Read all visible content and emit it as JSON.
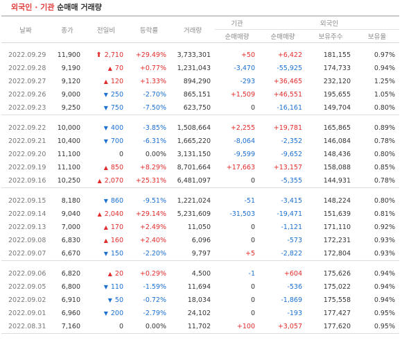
{
  "title": {
    "part1": "외국인 · 기관",
    "part2": "순매매 거래량"
  },
  "headers": {
    "date": "날짜",
    "close": "종가",
    "change": "전일비",
    "rate": "등락률",
    "volume": "거래량",
    "inst_group": "기관",
    "foreign_group": "외국인",
    "inst_net": "순매매량",
    "foreign_net": "순매매량",
    "foreign_holdings": "보유주수",
    "foreign_ratio": "보유율"
  },
  "groups": [
    [
      {
        "date": "2022.09.29",
        "close": "11,900",
        "dir": "upper",
        "change": "2,710",
        "rate": "+29.49%",
        "rate_dir": "up",
        "volume": "3,733,301",
        "inst": "+50",
        "inst_dir": "up",
        "foreign": "+6,422",
        "foreign_dir": "up",
        "holdings": "181,155",
        "ratio": "0.97%"
      },
      {
        "date": "2022.09.28",
        "close": "9,190",
        "dir": "up",
        "change": "70",
        "rate": "+0.77%",
        "rate_dir": "up",
        "volume": "1,231,043",
        "inst": "-3,470",
        "inst_dir": "dn",
        "foreign": "-55,925",
        "foreign_dir": "dn",
        "holdings": "174,733",
        "ratio": "0.94%"
      },
      {
        "date": "2022.09.27",
        "close": "9,120",
        "dir": "up",
        "change": "120",
        "rate": "+1.33%",
        "rate_dir": "up",
        "volume": "894,290",
        "inst": "-293",
        "inst_dir": "dn",
        "foreign": "+36,465",
        "foreign_dir": "up",
        "holdings": "232,120",
        "ratio": "1.25%"
      },
      {
        "date": "2022.09.26",
        "close": "9,000",
        "dir": "dn",
        "change": "250",
        "rate": "-2.70%",
        "rate_dir": "dn",
        "volume": "865,151",
        "inst": "+1,509",
        "inst_dir": "up",
        "foreign": "+46,551",
        "foreign_dir": "up",
        "holdings": "195,655",
        "ratio": "1.05%"
      },
      {
        "date": "2022.09.23",
        "close": "9,250",
        "dir": "dn",
        "change": "750",
        "rate": "-7.50%",
        "rate_dir": "dn",
        "volume": "623,750",
        "inst": "0",
        "inst_dir": "zero",
        "foreign": "-16,161",
        "foreign_dir": "dn",
        "holdings": "149,704",
        "ratio": "0.80%"
      }
    ],
    [
      {
        "date": "2022.09.22",
        "close": "10,000",
        "dir": "dn",
        "change": "400",
        "rate": "-3.85%",
        "rate_dir": "dn",
        "volume": "1,508,664",
        "inst": "+2,255",
        "inst_dir": "up",
        "foreign": "+19,781",
        "foreign_dir": "up",
        "holdings": "165,865",
        "ratio": "0.89%"
      },
      {
        "date": "2022.09.21",
        "close": "10,400",
        "dir": "dn",
        "change": "700",
        "rate": "-6.31%",
        "rate_dir": "dn",
        "volume": "1,665,220",
        "inst": "-8,064",
        "inst_dir": "dn",
        "foreign": "-2,352",
        "foreign_dir": "dn",
        "holdings": "146,084",
        "ratio": "0.78%"
      },
      {
        "date": "2022.09.20",
        "close": "11,100",
        "dir": "none",
        "change": "0",
        "rate": "0.00%",
        "rate_dir": "zero",
        "volume": "3,131,150",
        "inst": "-9,599",
        "inst_dir": "dn",
        "foreign": "-9,652",
        "foreign_dir": "dn",
        "holdings": "148,436",
        "ratio": "0.80%"
      },
      {
        "date": "2022.09.19",
        "close": "11,100",
        "dir": "up",
        "change": "850",
        "rate": "+8.29%",
        "rate_dir": "up",
        "volume": "8,701,664",
        "inst": "+17,663",
        "inst_dir": "up",
        "foreign": "+13,157",
        "foreign_dir": "up",
        "holdings": "158,088",
        "ratio": "0.85%"
      },
      {
        "date": "2022.09.16",
        "close": "10,250",
        "dir": "up",
        "change": "2,070",
        "rate": "+25.31%",
        "rate_dir": "up",
        "volume": "6,481,097",
        "inst": "0",
        "inst_dir": "zero",
        "foreign": "-5,355",
        "foreign_dir": "dn",
        "holdings": "144,931",
        "ratio": "0.78%"
      }
    ],
    [
      {
        "date": "2022.09.15",
        "close": "8,180",
        "dir": "dn",
        "change": "860",
        "rate": "-9.51%",
        "rate_dir": "dn",
        "volume": "1,221,024",
        "inst": "-51",
        "inst_dir": "dn",
        "foreign": "-3,415",
        "foreign_dir": "dn",
        "holdings": "148,224",
        "ratio": "0.80%"
      },
      {
        "date": "2022.09.14",
        "close": "9,040",
        "dir": "up",
        "change": "2,040",
        "rate": "+29.14%",
        "rate_dir": "up",
        "volume": "5,231,609",
        "inst": "-31,503",
        "inst_dir": "dn",
        "foreign": "-19,471",
        "foreign_dir": "dn",
        "holdings": "151,639",
        "ratio": "0.81%"
      },
      {
        "date": "2022.09.13",
        "close": "7,000",
        "dir": "up",
        "change": "170",
        "rate": "+2.49%",
        "rate_dir": "up",
        "volume": "11,050",
        "inst": "0",
        "inst_dir": "zero",
        "foreign": "-1,121",
        "foreign_dir": "dn",
        "holdings": "171,110",
        "ratio": "0.92%"
      },
      {
        "date": "2022.09.08",
        "close": "6,830",
        "dir": "up",
        "change": "160",
        "rate": "+2.40%",
        "rate_dir": "up",
        "volume": "6,096",
        "inst": "0",
        "inst_dir": "zero",
        "foreign": "-573",
        "foreign_dir": "dn",
        "holdings": "172,231",
        "ratio": "0.93%"
      },
      {
        "date": "2022.09.07",
        "close": "6,670",
        "dir": "dn",
        "change": "150",
        "rate": "-2.20%",
        "rate_dir": "dn",
        "volume": "9,797",
        "inst": "+5",
        "inst_dir": "up",
        "foreign": "-2,822",
        "foreign_dir": "dn",
        "holdings": "172,804",
        "ratio": "0.93%"
      }
    ],
    [
      {
        "date": "2022.09.06",
        "close": "6,820",
        "dir": "up",
        "change": "20",
        "rate": "+0.29%",
        "rate_dir": "up",
        "volume": "4,500",
        "inst": "-1",
        "inst_dir": "dn",
        "foreign": "+604",
        "foreign_dir": "up",
        "holdings": "175,626",
        "ratio": "0.94%"
      },
      {
        "date": "2022.09.05",
        "close": "6,800",
        "dir": "dn",
        "change": "110",
        "rate": "-1.59%",
        "rate_dir": "dn",
        "volume": "11,694",
        "inst": "0",
        "inst_dir": "zero",
        "foreign": "-536",
        "foreign_dir": "dn",
        "holdings": "175,022",
        "ratio": "0.94%"
      },
      {
        "date": "2022.09.02",
        "close": "6,910",
        "dir": "dn",
        "change": "50",
        "rate": "-0.72%",
        "rate_dir": "dn",
        "volume": "18,034",
        "inst": "0",
        "inst_dir": "zero",
        "foreign": "-1,869",
        "foreign_dir": "dn",
        "holdings": "175,558",
        "ratio": "0.94%"
      },
      {
        "date": "2022.09.01",
        "close": "6,960",
        "dir": "dn",
        "change": "200",
        "rate": "-2.79%",
        "rate_dir": "dn",
        "volume": "24,102",
        "inst": "0",
        "inst_dir": "zero",
        "foreign": "-193",
        "foreign_dir": "dn",
        "holdings": "177,427",
        "ratio": "0.95%"
      },
      {
        "date": "2022.08.31",
        "close": "7,160",
        "dir": "none",
        "change": "0",
        "rate": "0.00%",
        "rate_dir": "zero",
        "volume": "11,702",
        "inst": "+100",
        "inst_dir": "up",
        "foreign": "+3,057",
        "foreign_dir": "up",
        "holdings": "177,620",
        "ratio": "0.95%"
      }
    ]
  ]
}
